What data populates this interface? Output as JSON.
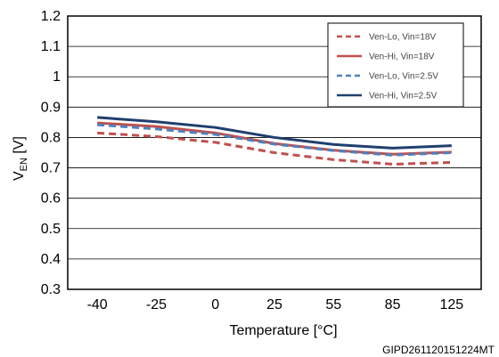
{
  "chart_data": {
    "type": "line",
    "categories": [
      "-40",
      "-25",
      "0",
      "25",
      "55",
      "85",
      "125"
    ],
    "xlabel": "Temperature [°C]",
    "ylabel": {
      "main": "V",
      "sub": "EN",
      "unit": " [V]"
    },
    "ylim": [
      0.3,
      1.2
    ],
    "yticks": [
      "0.3",
      "0.4",
      "0.5",
      "0.6",
      "0.7",
      "0.8",
      "0.9",
      "1",
      "1.1",
      "1.2"
    ],
    "grid": true,
    "legend_position": "top-right",
    "series": [
      {
        "name": "Ven-Lo, Vin=18V",
        "color": "#c0504d",
        "dashed": true,
        "values": [
          0.815,
          0.803,
          0.784,
          0.75,
          0.727,
          0.712,
          0.718
        ]
      },
      {
        "name": "Ven-Hi, Vin=18V",
        "color": "#c0504d",
        "dashed": false,
        "values": [
          0.848,
          0.836,
          0.815,
          0.78,
          0.758,
          0.745,
          0.752
        ]
      },
      {
        "name": "Ven-Lo, Vin=2.5V",
        "color": "#4f81bd",
        "dashed": true,
        "values": [
          0.842,
          0.828,
          0.81,
          0.778,
          0.757,
          0.742,
          0.75
        ]
      },
      {
        "name": "Ven-Hi, Vin=2.5V",
        "color": "#1f3f6e",
        "dashed": false,
        "values": [
          0.866,
          0.852,
          0.833,
          0.8,
          0.777,
          0.765,
          0.773
        ]
      }
    ]
  },
  "footer_code": "GIPD261120151224MT"
}
